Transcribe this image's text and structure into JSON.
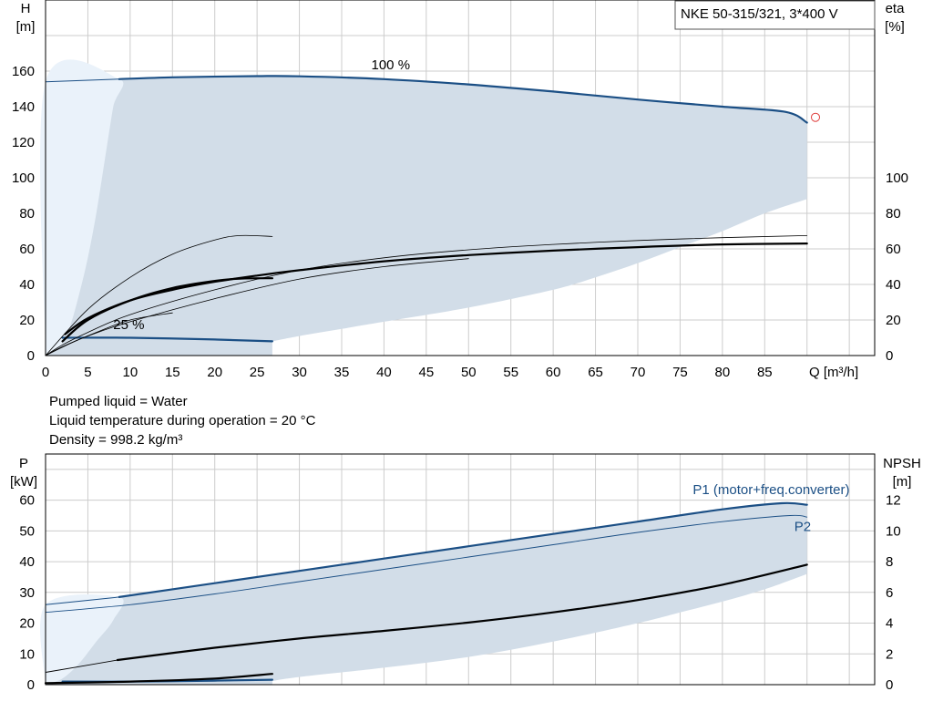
{
  "title": "NKE 50-315/321, 3*400 V",
  "colors": {
    "area": "#d2dde8",
    "area_light": "#eaf2fa",
    "blue": "#1b4f85",
    "black": "#000000",
    "grid": "#cccccc",
    "marker": "#e0403f"
  },
  "info_lines": [
    "Pumped liquid = Water",
    "Liquid temperature during operation = 20 °C",
    "Density = 998.2 kg/m³"
  ],
  "chart_data": [
    {
      "type": "line",
      "id": "qh",
      "y_label": "H",
      "y_unit": "[m]",
      "y2_label": "eta",
      "y2_unit": "[%]",
      "x_label": "Q [m³/h]",
      "x_ticks": [
        0,
        5,
        10,
        15,
        20,
        25,
        30,
        35,
        40,
        45,
        50,
        55,
        60,
        65,
        70,
        75,
        80,
        85
      ],
      "y_ticks": [
        0,
        20,
        40,
        60,
        80,
        100,
        120,
        140,
        160
      ],
      "y2_ticks": [
        0,
        20,
        40,
        60,
        80,
        100
      ],
      "xlim": [
        0,
        98
      ],
      "ylim": [
        0,
        200
      ],
      "grid": true,
      "area": {
        "upper": [
          [
            8.7,
            155.5
          ],
          [
            15,
            156.5
          ],
          [
            25,
            157.2
          ],
          [
            30,
            157.1
          ],
          [
            40,
            155.5
          ],
          [
            50,
            152.5
          ],
          [
            60,
            148.5
          ],
          [
            70,
            144
          ],
          [
            80,
            140
          ],
          [
            87.5,
            137
          ],
          [
            90,
            131
          ]
        ],
        "lower": [
          [
            90,
            88
          ],
          [
            85,
            80
          ],
          [
            80,
            70
          ],
          [
            75,
            61
          ],
          [
            70,
            52
          ],
          [
            65,
            44
          ],
          [
            60,
            37
          ],
          [
            50,
            27
          ],
          [
            40,
            19
          ],
          [
            35,
            15
          ],
          [
            30,
            11
          ],
          [
            26.8,
            8
          ]
        ],
        "light": [
          [
            0,
            0
          ],
          [
            0,
            154
          ],
          [
            8.7,
            155.5
          ],
          [
            8,
            140
          ],
          [
            7,
            110
          ],
          [
            6,
            80
          ],
          [
            5,
            55
          ],
          [
            4,
            35
          ],
          [
            3,
            18
          ],
          [
            2,
            7
          ],
          [
            0,
            0
          ]
        ]
      },
      "series": [
        {
          "id": "h_max",
          "color": "blue",
          "width": 2.2,
          "points": [
            [
              8.7,
              155.5
            ],
            [
              15,
              156.5
            ],
            [
              25,
              157.2
            ],
            [
              30,
              157.1
            ],
            [
              40,
              155.5
            ],
            [
              50,
              152.5
            ],
            [
              60,
              148.5
            ],
            [
              70,
              144
            ],
            [
              80,
              140
            ],
            [
              87.5,
              137
            ],
            [
              90,
              131
            ]
          ]
        },
        {
          "id": "h_max_ext",
          "color": "blue",
          "width": 1,
          "points": [
            [
              0,
              154
            ],
            [
              8.7,
              155.5
            ]
          ]
        },
        {
          "id": "h_min",
          "color": "blue",
          "width": 2.2,
          "points": [
            [
              2,
              10
            ],
            [
              10,
              10
            ],
            [
              20,
              9
            ],
            [
              26.8,
              8
            ]
          ]
        },
        {
          "id": "eta_max",
          "color": "black",
          "width": 2.2,
          "points": [
            [
              2.3,
              12
            ],
            [
              5,
              21
            ],
            [
              10,
              31
            ],
            [
              15,
              37
            ],
            [
              20,
              41.5
            ],
            [
              25,
              45
            ],
            [
              30,
              48
            ],
            [
              40,
              53
            ],
            [
              50,
              56.5
            ],
            [
              60,
              59
            ],
            [
              70,
              61
            ],
            [
              80,
              62.5
            ],
            [
              90,
              63
            ]
          ]
        },
        {
          "id": "eta_max_thin",
          "color": "black",
          "width": 0.8,
          "points": [
            [
              0,
              0
            ],
            [
              2,
              6
            ],
            [
              5,
              13
            ],
            [
              10,
              23
            ],
            [
              20,
              37
            ],
            [
              30,
              48
            ],
            [
              40,
              55
            ],
            [
              50,
              59.5
            ],
            [
              60,
              62.5
            ],
            [
              70,
              64.7
            ],
            [
              80,
              66.3
            ],
            [
              90,
              67.5
            ]
          ]
        },
        {
          "id": "eta_max_thin_low",
          "color": "black",
          "width": 0.8,
          "points": [
            [
              0,
              0
            ],
            [
              2,
              5
            ],
            [
              5,
              11
            ],
            [
              10,
              19
            ],
            [
              20,
              32
            ],
            [
              30,
              43
            ],
            [
              40,
              50
            ],
            [
              50,
              54.5
            ]
          ]
        },
        {
          "id": "eta_min",
          "color": "black",
          "width": 2.2,
          "points": [
            [
              2,
              8
            ],
            [
              5,
              20
            ],
            [
              10,
              31
            ],
            [
              15,
              38
            ],
            [
              20,
              42
            ],
            [
              23,
              43.3
            ],
            [
              26.8,
              43.5
            ]
          ]
        },
        {
          "id": "eta_min_thin",
          "color": "black",
          "width": 0.8,
          "points": [
            [
              0,
              0
            ],
            [
              5,
              26
            ],
            [
              10,
              44
            ],
            [
              15,
              57
            ],
            [
              20,
              65
            ],
            [
              23,
              67.5
            ],
            [
              26.8,
              67
            ]
          ]
        },
        {
          "id": "eta_min_thin_low",
          "color": "black",
          "width": 0.8,
          "points": [
            [
              0,
              0
            ],
            [
              3,
              7
            ],
            [
              6,
              13
            ],
            [
              10,
              20
            ],
            [
              15,
              24
            ]
          ]
        }
      ],
      "marker": {
        "x": 91,
        "y": 134
      },
      "labels": [
        {
          "text": "100 %",
          "x": 38.5,
          "y": 161
        },
        {
          "text": "25 %",
          "x": 8,
          "y": 15
        }
      ]
    },
    {
      "type": "line",
      "id": "power",
      "y_label": "P",
      "y_unit": "[kW]",
      "y2_label": "NPSH",
      "y2_unit": "[m]",
      "x_ticks": [
        0,
        5,
        10,
        15,
        20,
        25,
        30,
        35,
        40,
        45,
        50,
        55,
        60,
        65,
        70,
        75,
        80,
        85
      ],
      "y_ticks": [
        0,
        10,
        20,
        30,
        40,
        50,
        60
      ],
      "y2_ticks": [
        0,
        2,
        4,
        6,
        8,
        10,
        12
      ],
      "xlim": [
        0,
        98
      ],
      "ylim": [
        0,
        75
      ],
      "grid": true,
      "area": {
        "upper": [
          [
            8.7,
            28.5
          ],
          [
            20,
            33
          ],
          [
            30,
            37
          ],
          [
            40,
            41
          ],
          [
            50,
            45
          ],
          [
            60,
            49
          ],
          [
            70,
            53
          ],
          [
            80,
            57
          ],
          [
            87,
            59
          ],
          [
            90,
            58.5
          ]
        ],
        "lower": [
          [
            90,
            36
          ],
          [
            85,
            31
          ],
          [
            80,
            27
          ],
          [
            75,
            23.5
          ],
          [
            70,
            20
          ],
          [
            60,
            14
          ],
          [
            50,
            9
          ],
          [
            40,
            5.5
          ],
          [
            30,
            2.5
          ],
          [
            26.8,
            1.2
          ]
        ],
        "light": [
          [
            0,
            0
          ],
          [
            0,
            26
          ],
          [
            8.7,
            28.5
          ],
          [
            8,
            21
          ],
          [
            6,
            14
          ],
          [
            4,
            7
          ],
          [
            2,
            2
          ],
          [
            0,
            0
          ]
        ]
      },
      "series": [
        {
          "id": "p1",
          "color": "blue",
          "width": 2.2,
          "points": [
            [
              8.7,
              28.5
            ],
            [
              20,
              33
            ],
            [
              30,
              37
            ],
            [
              40,
              41
            ],
            [
              50,
              45
            ],
            [
              60,
              49
            ],
            [
              70,
              53
            ],
            [
              80,
              57
            ],
            [
              87,
              59
            ],
            [
              90,
              58.5
            ]
          ]
        },
        {
          "id": "p1_ext",
          "color": "blue",
          "width": 1,
          "points": [
            [
              0,
              26
            ],
            [
              8.7,
              28.5
            ]
          ]
        },
        {
          "id": "p2",
          "color": "blue",
          "width": 0.9,
          "points": [
            [
              0,
              23.5
            ],
            [
              10,
              26
            ],
            [
              20,
              29.5
            ],
            [
              30,
              33.5
            ],
            [
              40,
              37.5
            ],
            [
              50,
              41.5
            ],
            [
              60,
              45.5
            ],
            [
              70,
              49.5
            ],
            [
              80,
              53
            ],
            [
              88,
              55
            ],
            [
              90,
              54.5
            ]
          ]
        },
        {
          "id": "p1_min",
          "color": "blue",
          "width": 2.2,
          "points": [
            [
              2,
              1
            ],
            [
              10,
              1
            ],
            [
              20,
              1.3
            ],
            [
              26.8,
              1.6
            ]
          ]
        },
        {
          "id": "npsh_max",
          "color": "black",
          "width": 2.2,
          "points": [
            [
              8.5,
              8
            ],
            [
              20,
              12
            ],
            [
              30,
              15
            ],
            [
              40,
              17.5
            ],
            [
              50,
              20.2
            ],
            [
              60,
              23.5
            ],
            [
              70,
              27.5
            ],
            [
              80,
              32.5
            ],
            [
              90,
              39
            ]
          ]
        },
        {
          "id": "npsh_max_ext",
          "color": "black",
          "width": 0.9,
          "points": [
            [
              0,
              4
            ],
            [
              8.5,
              8
            ]
          ]
        },
        {
          "id": "npsh_min",
          "color": "black",
          "width": 2.2,
          "points": [
            [
              0,
              0.5
            ],
            [
              10,
              1
            ],
            [
              20,
              2
            ],
            [
              26.8,
              3.5
            ]
          ]
        }
      ],
      "labels": [
        {
          "text": "P1 (motor+freq.converter)",
          "x": 76.5,
          "y": 62,
          "color": "blue"
        },
        {
          "text": "P2",
          "x": 88.5,
          "y": 50,
          "color": "blue"
        }
      ]
    }
  ]
}
